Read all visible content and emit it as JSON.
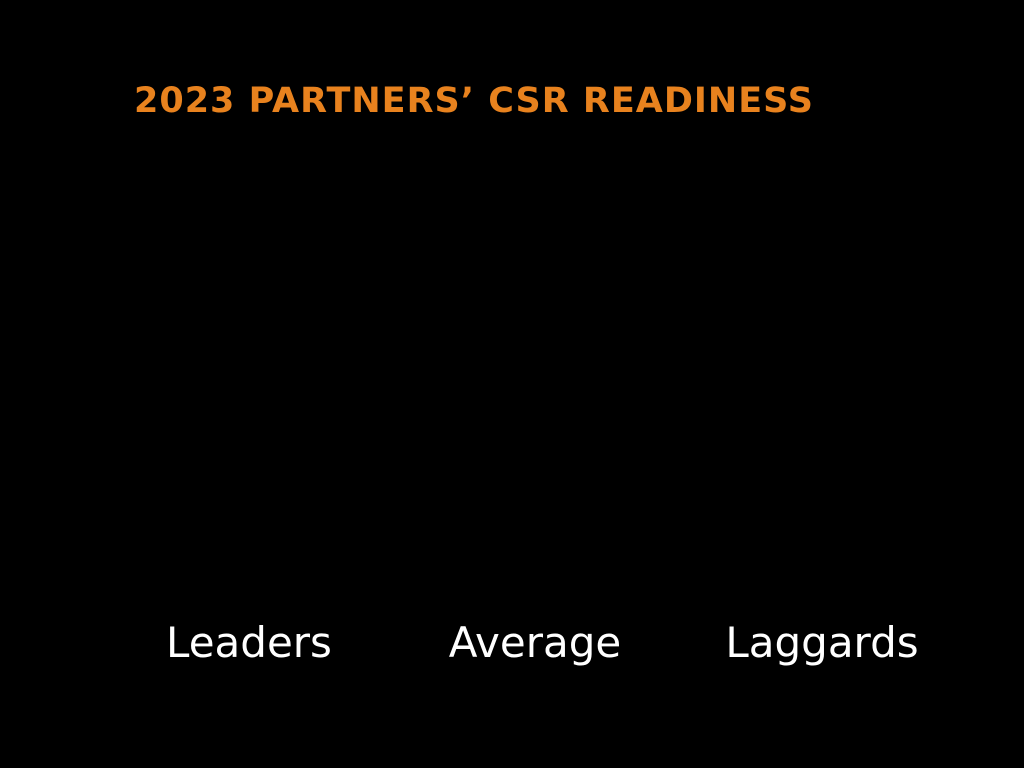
{
  "colors": {
    "background": "#000000",
    "title": "#E8821E",
    "labels": "#FFFFFF"
  },
  "chart_data": {
    "type": "bar",
    "title": "2023 PARTNERS’ CSR READINESS",
    "categories": [
      "Leaders",
      "Average",
      "Laggards"
    ],
    "values": [
      null,
      null,
      null
    ],
    "xlabel": "",
    "ylabel": "",
    "grid": false
  }
}
